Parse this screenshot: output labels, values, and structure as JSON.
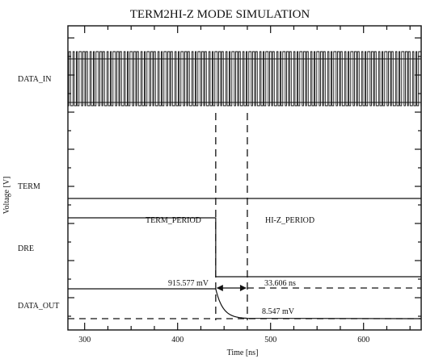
{
  "chart_data": {
    "type": "line",
    "title": "TERM2HI-Z MODE SIMULATION",
    "xlabel": "Time [ns]",
    "ylabel": "Voltage [V]",
    "xlim": [
      282,
      662
    ],
    "x_ticks": [
      300,
      400,
      500,
      600
    ],
    "grid": false,
    "series": [
      {
        "name": "DATA_IN",
        "style": "dense square wave",
        "x_start": 282,
        "x_end": 662
      },
      {
        "name": "TERM",
        "style": "constant level",
        "x": [
          282,
          662
        ]
      },
      {
        "name": "DRE",
        "style": "step down",
        "x": [
          282,
          441,
          441,
          662
        ],
        "level": [
          "high",
          "high",
          "low",
          "low"
        ]
      },
      {
        "name": "DATA_OUT",
        "style": "exponential decay after switch",
        "x_switch": 441
      }
    ],
    "markers": [
      {
        "x": 441,
        "style": "dashed vertical"
      },
      {
        "x": 475,
        "style": "dashed vertical"
      }
    ],
    "annotations": {
      "term_period": "TERM_PERIOD",
      "hiz_period": "HI-Z_PERIOD",
      "voltage_high": "915.577 mV",
      "voltage_low": "8.547 mV",
      "interval": "33.606 ns"
    }
  }
}
